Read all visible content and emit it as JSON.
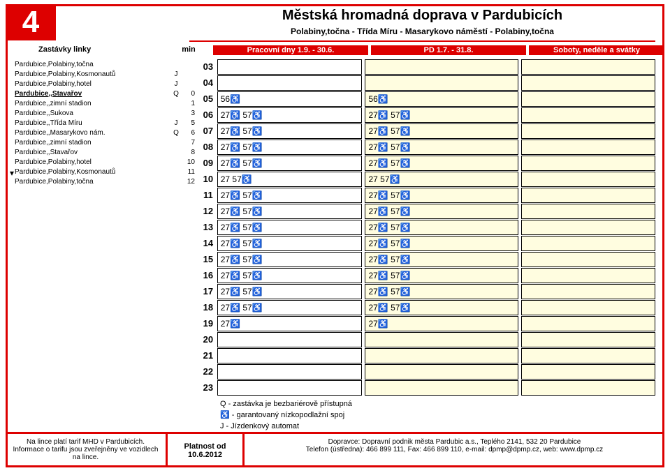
{
  "line_number": "4",
  "title": "Městská hromadná doprava v Pardubicích",
  "route": "Polabiny,točna - Třída Míru - Masarykovo náměstí - Polabiny,točna",
  "headers": {
    "stops": "Zastávky linky",
    "min": "min",
    "col1": "Pracovní dny 1.9. - 30.6.",
    "col2": "PD 1.7. - 31.8.",
    "col3": "Soboty, neděle a svátky"
  },
  "stops": [
    {
      "name": "Pardubice,Polabiny,točna",
      "flag": "",
      "min": "",
      "bold": false
    },
    {
      "name": "Pardubice,Polabiny,Kosmonautů",
      "flag": "J",
      "min": "",
      "bold": false
    },
    {
      "name": "Pardubice,Polabiny,hotel",
      "flag": "J",
      "min": "",
      "bold": false
    },
    {
      "name": "Pardubice,,Stavařov",
      "flag": "Q",
      "min": "0",
      "bold": true
    },
    {
      "name": "Pardubice,,zimní stadion",
      "flag": "",
      "min": "1",
      "bold": false
    },
    {
      "name": "Pardubice,,Sukova",
      "flag": "",
      "min": "3",
      "bold": false
    },
    {
      "name": "Pardubice,,Třída Míru",
      "flag": "J",
      "min": "5",
      "bold": false
    },
    {
      "name": "Pardubice,,Masarykovo nám.",
      "flag": "Q",
      "min": "6",
      "bold": false
    },
    {
      "name": "Pardubice,,zimní stadion",
      "flag": "",
      "min": "7",
      "bold": false
    },
    {
      "name": "Pardubice,,Stavařov",
      "flag": "",
      "min": "8",
      "bold": false
    },
    {
      "name": "Pardubice,Polabiny,hotel",
      "flag": "",
      "min": "10",
      "bold": false
    },
    {
      "name": "Pardubice,Polabiny,Kosmonautů",
      "flag": "",
      "min": "11",
      "bold": false
    },
    {
      "name": "Pardubice,Polabiny,točna",
      "flag": "",
      "min": "12",
      "bold": false
    }
  ],
  "wheelchair_glyph": "♿",
  "hours": [
    {
      "h": "03",
      "c1": "",
      "c2": ""
    },
    {
      "h": "04",
      "c1": "",
      "c2": ""
    },
    {
      "h": "05",
      "c1": "56♿",
      "c2": "56♿"
    },
    {
      "h": "06",
      "c1": "27♿ 57♿",
      "c2": "27♿ 57♿"
    },
    {
      "h": "07",
      "c1": "27♿ 57♿",
      "c2": "27♿ 57♿"
    },
    {
      "h": "08",
      "c1": "27♿ 57♿",
      "c2": "27♿ 57♿"
    },
    {
      "h": "09",
      "c1": "27♿ 57♿",
      "c2": "27♿ 57♿"
    },
    {
      "h": "10",
      "c1": "27 57♿",
      "c2": "27 57♿"
    },
    {
      "h": "11",
      "c1": "27♿ 57♿",
      "c2": "27♿ 57♿"
    },
    {
      "h": "12",
      "c1": "27♿ 57♿",
      "c2": "27♿ 57♿"
    },
    {
      "h": "13",
      "c1": "27♿ 57♿",
      "c2": "27♿ 57♿"
    },
    {
      "h": "14",
      "c1": "27♿ 57♿",
      "c2": "27♿ 57♿"
    },
    {
      "h": "15",
      "c1": "27♿ 57♿",
      "c2": "27♿ 57♿"
    },
    {
      "h": "16",
      "c1": "27♿ 57♿",
      "c2": "27♿ 57♿"
    },
    {
      "h": "17",
      "c1": "27♿ 57♿",
      "c2": "27♿ 57♿"
    },
    {
      "h": "18",
      "c1": "27♿ 57♿",
      "c2": "27♿ 57♿"
    },
    {
      "h": "19",
      "c1": "27♿",
      "c2": "27♿"
    },
    {
      "h": "20",
      "c1": "",
      "c2": ""
    },
    {
      "h": "21",
      "c1": "",
      "c2": ""
    },
    {
      "h": "22",
      "c1": "",
      "c2": ""
    },
    {
      "h": "23",
      "c1": "",
      "c2": ""
    }
  ],
  "legend": {
    "q": "Q - zastávka je bezbariérově přístupná",
    "wc": "♿ - garantovaný nízkopodlažní spoj",
    "j": "J - Jízdenkový automat"
  },
  "footer": {
    "left": "Na lince platí tarif MHD v Pardubicích. Informace o tarifu jsou zveřejněny ve vozidlech na lince.",
    "mid": "Platnost od 10.6.2012",
    "right1": "Dopravce: Dopravní podnik města Pardubic a.s., Teplého 2141, 532 20 Pardubice",
    "right2": "Telefon (ústředna): 466 899 111, Fax: 466 899 110, e-mail: dpmp@dpmp.cz, web: www.dpmp.cz"
  },
  "colors": {
    "accent": "#d00",
    "col2_bg": "#fffde0",
    "col3_bg": "#fffde0"
  }
}
